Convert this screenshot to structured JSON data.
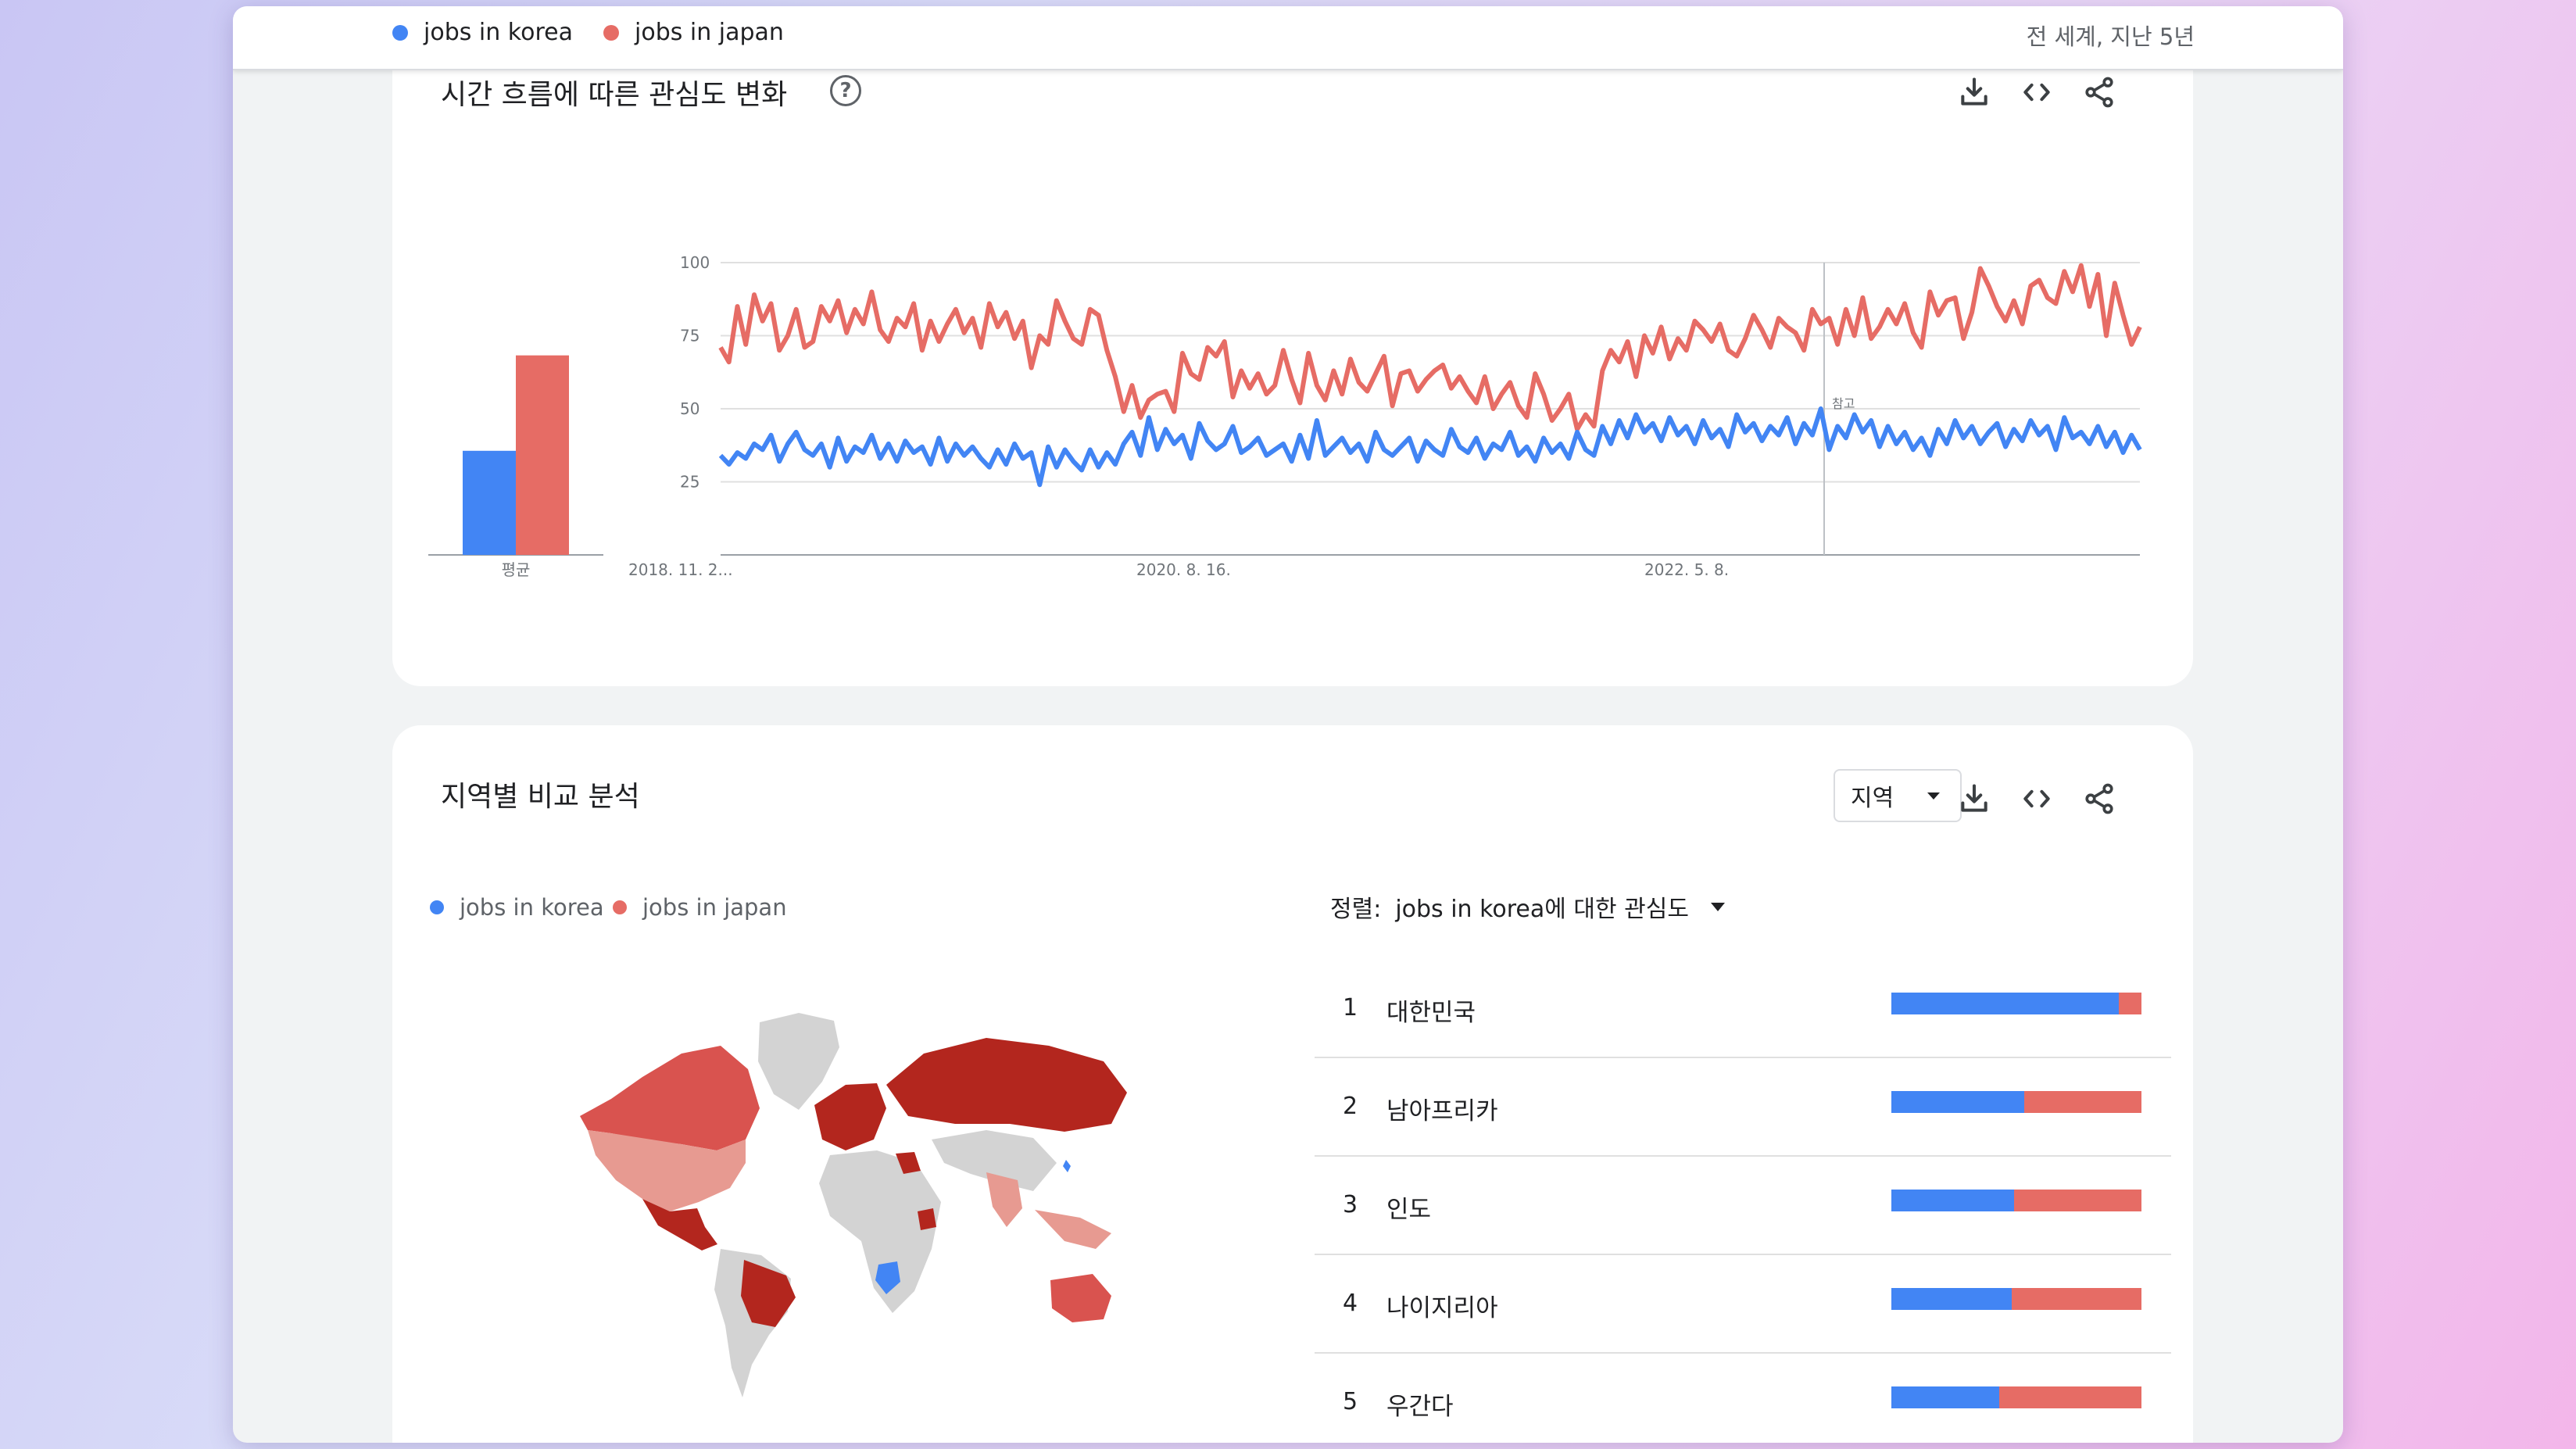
{
  "colors": {
    "korea": "#4285f4",
    "japan": "#e66c65",
    "japan_dark": "#b3261e",
    "japan_mid": "#d9534f",
    "japan_light": "#e79a91",
    "map_grey": "#d3d3d3"
  },
  "topbar": {
    "legend": [
      {
        "label": "jobs in korea",
        "color": "#4285f4"
      },
      {
        "label": "jobs in japan",
        "color": "#e66c65"
      }
    ],
    "scope": "전 세계, 지난 5년"
  },
  "interest_over_time": {
    "title": "시간 흐름에 따른 관심도 변화",
    "help_icon": "help-circle-icon",
    "actions": [
      "download-icon",
      "embed-code-icon",
      "share-icon"
    ],
    "average_label": "평균",
    "marker_label": "참고"
  },
  "chart_data": [
    {
      "type": "bar",
      "categories": [
        "평균"
      ],
      "series": [
        {
          "name": "jobs in korea",
          "values": [
            36
          ]
        },
        {
          "name": "jobs in japan",
          "values": [
            69
          ]
        }
      ],
      "ylim": [
        0,
        100
      ]
    },
    {
      "type": "line",
      "x_tick_labels": [
        "2018. 11. 2...",
        "2020. 8. 16.",
        "2022. 5. 8."
      ],
      "y_ticks": [
        25,
        50,
        75,
        100
      ],
      "ylim": [
        0,
        100
      ],
      "grid": true,
      "series": [
        {
          "name": "jobs in japan",
          "values": [
            71,
            66,
            85,
            72,
            89,
            80,
            86,
            70,
            75,
            84,
            71,
            73,
            85,
            80,
            87,
            76,
            84,
            79,
            90,
            77,
            73,
            81,
            78,
            86,
            70,
            80,
            73,
            79,
            84,
            76,
            81,
            71,
            86,
            78,
            83,
            74,
            80,
            64,
            75,
            72,
            87,
            80,
            74,
            72,
            84,
            82,
            70,
            61,
            49,
            58,
            47,
            53,
            55,
            56,
            49,
            69,
            62,
            60,
            71,
            68,
            73,
            54,
            63,
            57,
            62,
            55,
            58,
            70,
            60,
            52,
            69,
            58,
            53,
            63,
            55,
            67,
            59,
            56,
            62,
            68,
            51,
            62,
            63,
            56,
            60,
            63,
            65,
            57,
            61,
            56,
            52,
            61,
            50,
            55,
            59,
            51,
            47,
            62,
            55,
            46,
            50,
            55,
            43,
            48,
            44,
            63,
            70,
            66,
            73,
            61,
            75,
            69,
            78,
            67,
            74,
            70,
            80,
            77,
            73,
            79,
            70,
            68,
            74,
            82,
            77,
            71,
            81,
            78,
            76,
            70,
            84,
            79,
            81,
            72,
            84,
            75,
            88,
            74,
            78,
            84,
            79,
            86,
            76,
            71,
            90,
            82,
            87,
            88,
            74,
            83,
            98,
            92,
            85,
            80,
            87,
            79,
            92,
            94,
            88,
            86,
            97,
            90,
            99,
            85,
            96,
            75,
            93,
            82,
            72,
            78
          ]
        },
        {
          "name": "jobs in korea",
          "values": [
            34,
            31,
            35,
            33,
            38,
            36,
            41,
            32,
            38,
            42,
            36,
            34,
            38,
            30,
            40,
            32,
            37,
            35,
            41,
            33,
            38,
            32,
            39,
            35,
            37,
            31,
            40,
            32,
            38,
            34,
            37,
            33,
            30,
            36,
            31,
            38,
            33,
            35,
            24,
            37,
            30,
            36,
            32,
            29,
            36,
            30,
            35,
            31,
            38,
            42,
            34,
            47,
            36,
            43,
            38,
            41,
            33,
            45,
            39,
            36,
            38,
            44,
            35,
            37,
            40,
            34,
            36,
            38,
            32,
            41,
            33,
            46,
            34,
            37,
            40,
            35,
            38,
            32,
            42,
            36,
            34,
            37,
            40,
            32,
            39,
            36,
            34,
            43,
            37,
            35,
            40,
            33,
            38,
            36,
            42,
            34,
            37,
            32,
            40,
            35,
            38,
            33,
            42,
            36,
            34,
            44,
            38,
            46,
            40,
            48,
            42,
            45,
            39,
            47,
            41,
            44,
            38,
            46,
            40,
            43,
            37,
            48,
            42,
            45,
            39,
            44,
            41,
            47,
            38,
            45,
            41,
            50,
            36,
            44,
            40,
            48,
            42,
            46,
            37,
            44,
            38,
            42,
            36,
            40,
            34,
            43,
            38,
            46,
            40,
            44,
            38,
            42,
            45,
            37,
            43,
            39,
            46,
            41,
            44,
            36,
            47,
            40,
            42,
            38,
            44,
            37,
            42,
            35,
            41,
            36
          ]
        }
      ]
    }
  ],
  "regional": {
    "title": "지역별 비교 분석",
    "dropdown_value": "지역",
    "actions": [
      "download-icon",
      "embed-code-icon",
      "share-icon"
    ],
    "legend": [
      {
        "label": "jobs in korea",
        "color": "#4285f4"
      },
      {
        "label": "jobs in japan",
        "color": "#e66c65"
      }
    ],
    "sort_label": "정렬:",
    "sort_value": "jobs in korea에 대한 관심도",
    "rows": [
      {
        "rank": "1",
        "name": "대한민국",
        "korea_share": 0.91
      },
      {
        "rank": "2",
        "name": "남아프리카",
        "korea_share": 0.53
      },
      {
        "rank": "3",
        "name": "인도",
        "korea_share": 0.49
      },
      {
        "rank": "4",
        "name": "나이지리아",
        "korea_share": 0.48
      },
      {
        "rank": "5",
        "name": "우간다",
        "korea_share": 0.43
      }
    ]
  }
}
